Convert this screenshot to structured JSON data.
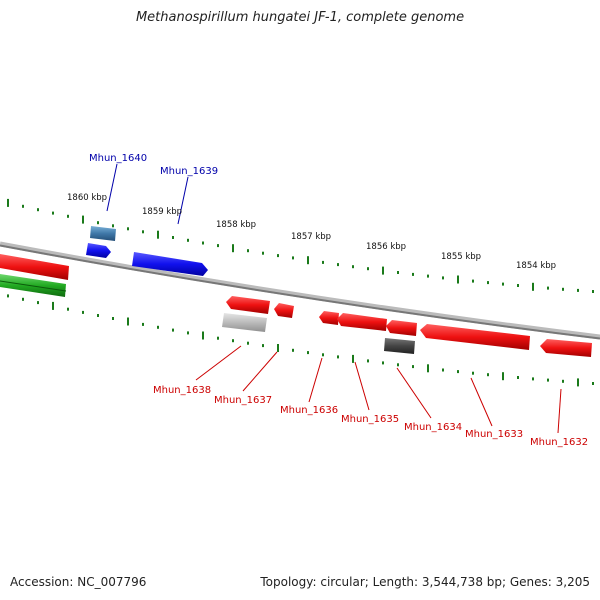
{
  "title": "Methanospirillum hungatei JF-1, complete genome",
  "footer": {
    "accession": "Accession: NC_007796",
    "summary": "Topology: circular; Length: 3,544,738 bp; Genes: 3,205"
  },
  "colors": {
    "top_label": "#0000aa",
    "bottom_label": "#cc0000",
    "tick": "#1a7a1a",
    "backbone": "#888888",
    "gene_red": "#ee1111",
    "gene_blue": "#1111ee",
    "gene_steel": "#3f78a8",
    "gene_gray": "#444444",
    "gene_lightgray": "#bbbbbb",
    "gene_green": "#22aa22"
  },
  "scale_labels": [
    {
      "id": "1860",
      "text": "1860 kbp"
    },
    {
      "id": "1859",
      "text": "1859 kbp"
    },
    {
      "id": "1858",
      "text": "1858 kbp"
    },
    {
      "id": "1857",
      "text": "1857 kbp"
    },
    {
      "id": "1856",
      "text": "1856 kbp"
    },
    {
      "id": "1855",
      "text": "1855 kbp"
    },
    {
      "id": "1854",
      "text": "1854 kbp"
    }
  ],
  "top_genes": [
    {
      "id": "mhun-1640",
      "text": "Mhun_1640"
    },
    {
      "id": "mhun-1639",
      "text": "Mhun_1639"
    }
  ],
  "bottom_genes": [
    {
      "id": "mhun-1638",
      "text": "Mhun_1638"
    },
    {
      "id": "mhun-1637",
      "text": "Mhun_1637"
    },
    {
      "id": "mhun-1636",
      "text": "Mhun_1636"
    },
    {
      "id": "mhun-1635",
      "text": "Mhun_1635"
    },
    {
      "id": "mhun-1634",
      "text": "Mhun_1634"
    },
    {
      "id": "mhun-1633",
      "text": "Mhun_1633"
    },
    {
      "id": "mhun-1632",
      "text": "Mhun_1632"
    }
  ]
}
